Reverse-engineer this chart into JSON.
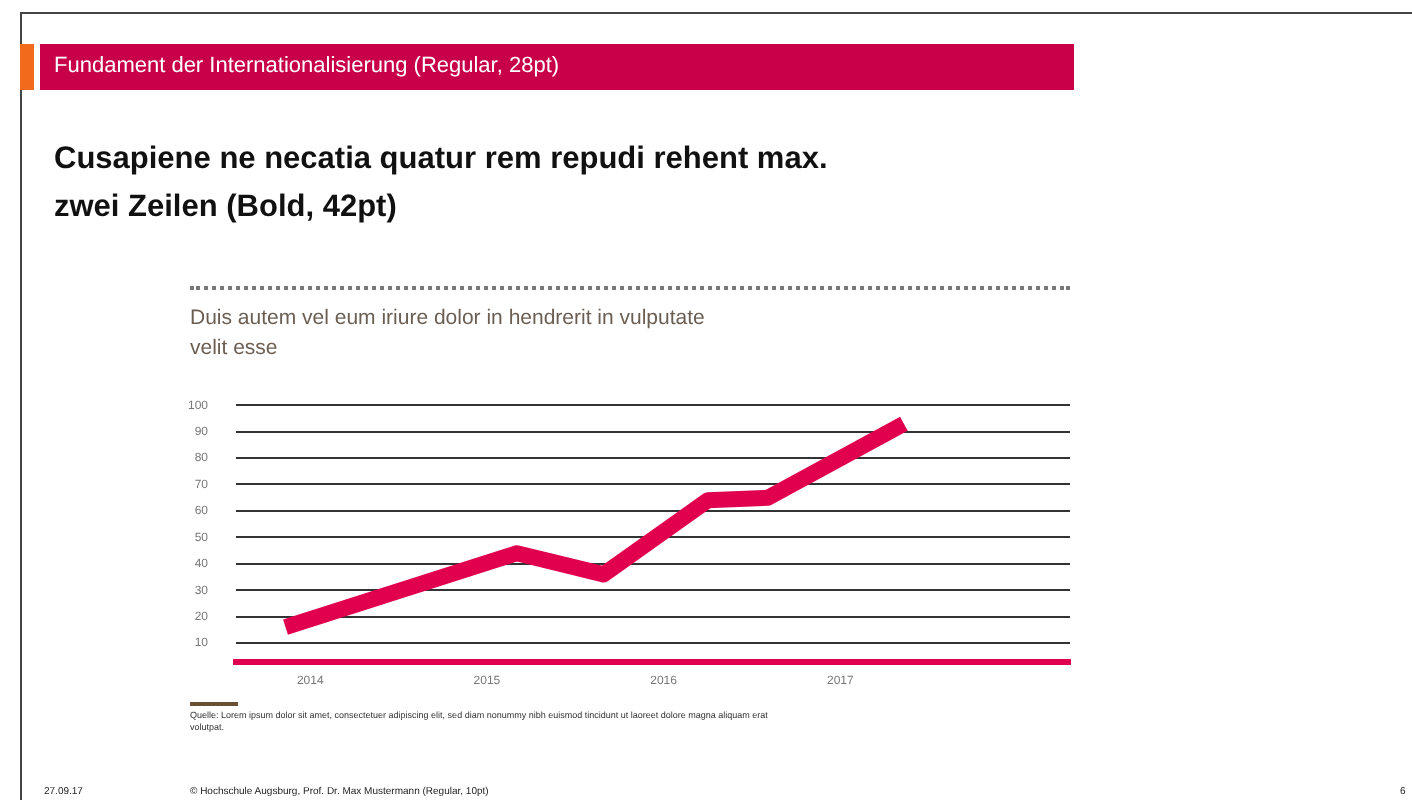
{
  "chart_data": {
    "type": "line",
    "title": "Cusapiene ne necatia quatur rem repudi rehent max. zwei Zeilen (Bold, 42pt)",
    "subtitle": "Duis autem vel eum iriure dolor in hendrerit in vulputate velit esse",
    "annotations": [
      "Fundament der Internationalisierung (Regular, 28pt)",
      "Quelle: Lorem ipsum dolor sit amet, consectetuer adipiscing elit, sed diam nonummy nibh euismod tincidunt ut laoreet dolore magna aliquam erat volutpat.",
      "27.09.17",
      "© Hochschule Augsburg, Prof. Dr. Max Mustermann (Regular, 10pt)",
      "6"
    ],
    "x": [
      2013.86,
      2015.17,
      2015.66,
      2016.25,
      2016.59,
      2017.36
    ],
    "series": [
      {
        "color": "#e0004d",
        "values": [
          16,
          44,
          36,
          64,
          65,
          93
        ]
      }
    ],
    "xlim": [
      2013.58,
      2018.3
    ],
    "xticks": [
      2014,
      2015,
      2016,
      2017
    ],
    "ylim": [
      3,
      100
    ],
    "yticks": [
      10,
      20,
      30,
      40,
      50,
      60,
      70,
      80,
      90,
      100
    ],
    "grid": "y",
    "legend": false,
    "marker": "none",
    "line_style": "solid"
  }
}
